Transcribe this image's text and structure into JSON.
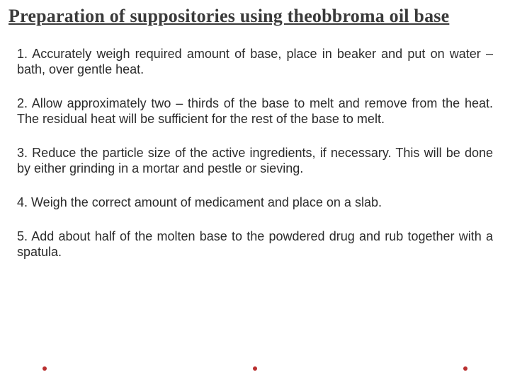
{
  "title": "Preparation of suppositories using theobbroma oil base",
  "steps": [
    "1. Accurately weigh required amount of base, place in beaker and put on water – bath, over gentle heat.",
    "2. Allow approximately two – thirds of the base to melt and remove from the heat. The residual heat will be sufficient for the rest of the base to melt.",
    "3. Reduce the particle size of the active ingredients, if necessary. This will be done by either grinding in a mortar and pestle or sieving.",
    "4. Weigh the correct amount of medicament and place on a slab.",
    "5. Add about half of the molten base to the powdered drug and rub together with a spatula."
  ],
  "colors": {
    "title_color": "#3a3a3a",
    "body_color": "#2b2b2b",
    "dot_color": "#b92f2f",
    "background": "#ffffff"
  },
  "typography": {
    "title_fontsize": 26,
    "title_family": "Georgia",
    "body_fontsize": 18,
    "body_family": "Arial"
  }
}
